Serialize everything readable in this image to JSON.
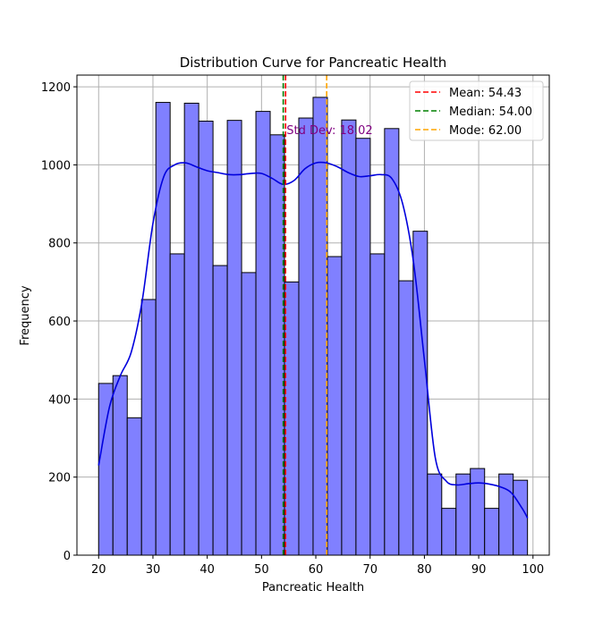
{
  "chart_data": {
    "type": "bar",
    "title": "Distribution Curve for Pancreatic Health",
    "xlabel": "Pancreatic Health",
    "ylabel": "Frequency",
    "xlim": [
      16,
      103
    ],
    "ylim": [
      0,
      1230
    ],
    "xticks": [
      20,
      30,
      40,
      50,
      60,
      70,
      80,
      90,
      100
    ],
    "yticks": [
      0,
      200,
      400,
      600,
      800,
      1000,
      1200
    ],
    "grid": true,
    "legend_position": "top-right",
    "bins": {
      "start": 20,
      "width": 2.633,
      "counts": [
        440,
        460,
        352,
        655,
        1160,
        772,
        1158,
        1112,
        742,
        1114,
        724,
        1137,
        1077,
        700,
        1120,
        1173,
        765,
        1115,
        1068,
        772,
        1093,
        703,
        830,
        208,
        120,
        208,
        222,
        120,
        208,
        192
      ]
    },
    "kde": {
      "x": [
        20,
        22,
        24,
        26,
        28,
        30,
        32,
        34,
        36,
        38,
        40,
        42,
        44,
        46,
        48,
        50,
        52,
        54,
        56,
        58,
        60,
        62,
        64,
        66,
        68,
        70,
        72,
        74,
        76,
        78,
        80,
        82,
        84,
        86,
        88,
        90,
        92,
        94,
        96,
        98,
        99
      ],
      "y": [
        230,
        380,
        460,
        520,
        650,
        850,
        970,
        1000,
        1005,
        995,
        985,
        980,
        975,
        975,
        978,
        978,
        965,
        950,
        960,
        990,
        1005,
        1005,
        995,
        980,
        970,
        972,
        975,
        965,
        900,
        750,
        500,
        250,
        190,
        180,
        183,
        185,
        182,
        175,
        160,
        120,
        95
      ]
    },
    "bar_color": "#8080ff",
    "kde_color": "#0000dd",
    "lines": [
      {
        "label": "Mean: 54.43",
        "value": 54.43,
        "color": "#ff0000"
      },
      {
        "label": "Median: 54.00",
        "value": 54.0,
        "color": "#008000"
      },
      {
        "label": "Mode: 62.00",
        "value": 62.0,
        "color": "#ffa500"
      }
    ],
    "annotation": {
      "text": "Std Dev: 18.02",
      "x": 54.43,
      "y": 1120,
      "color": "#800080"
    }
  }
}
